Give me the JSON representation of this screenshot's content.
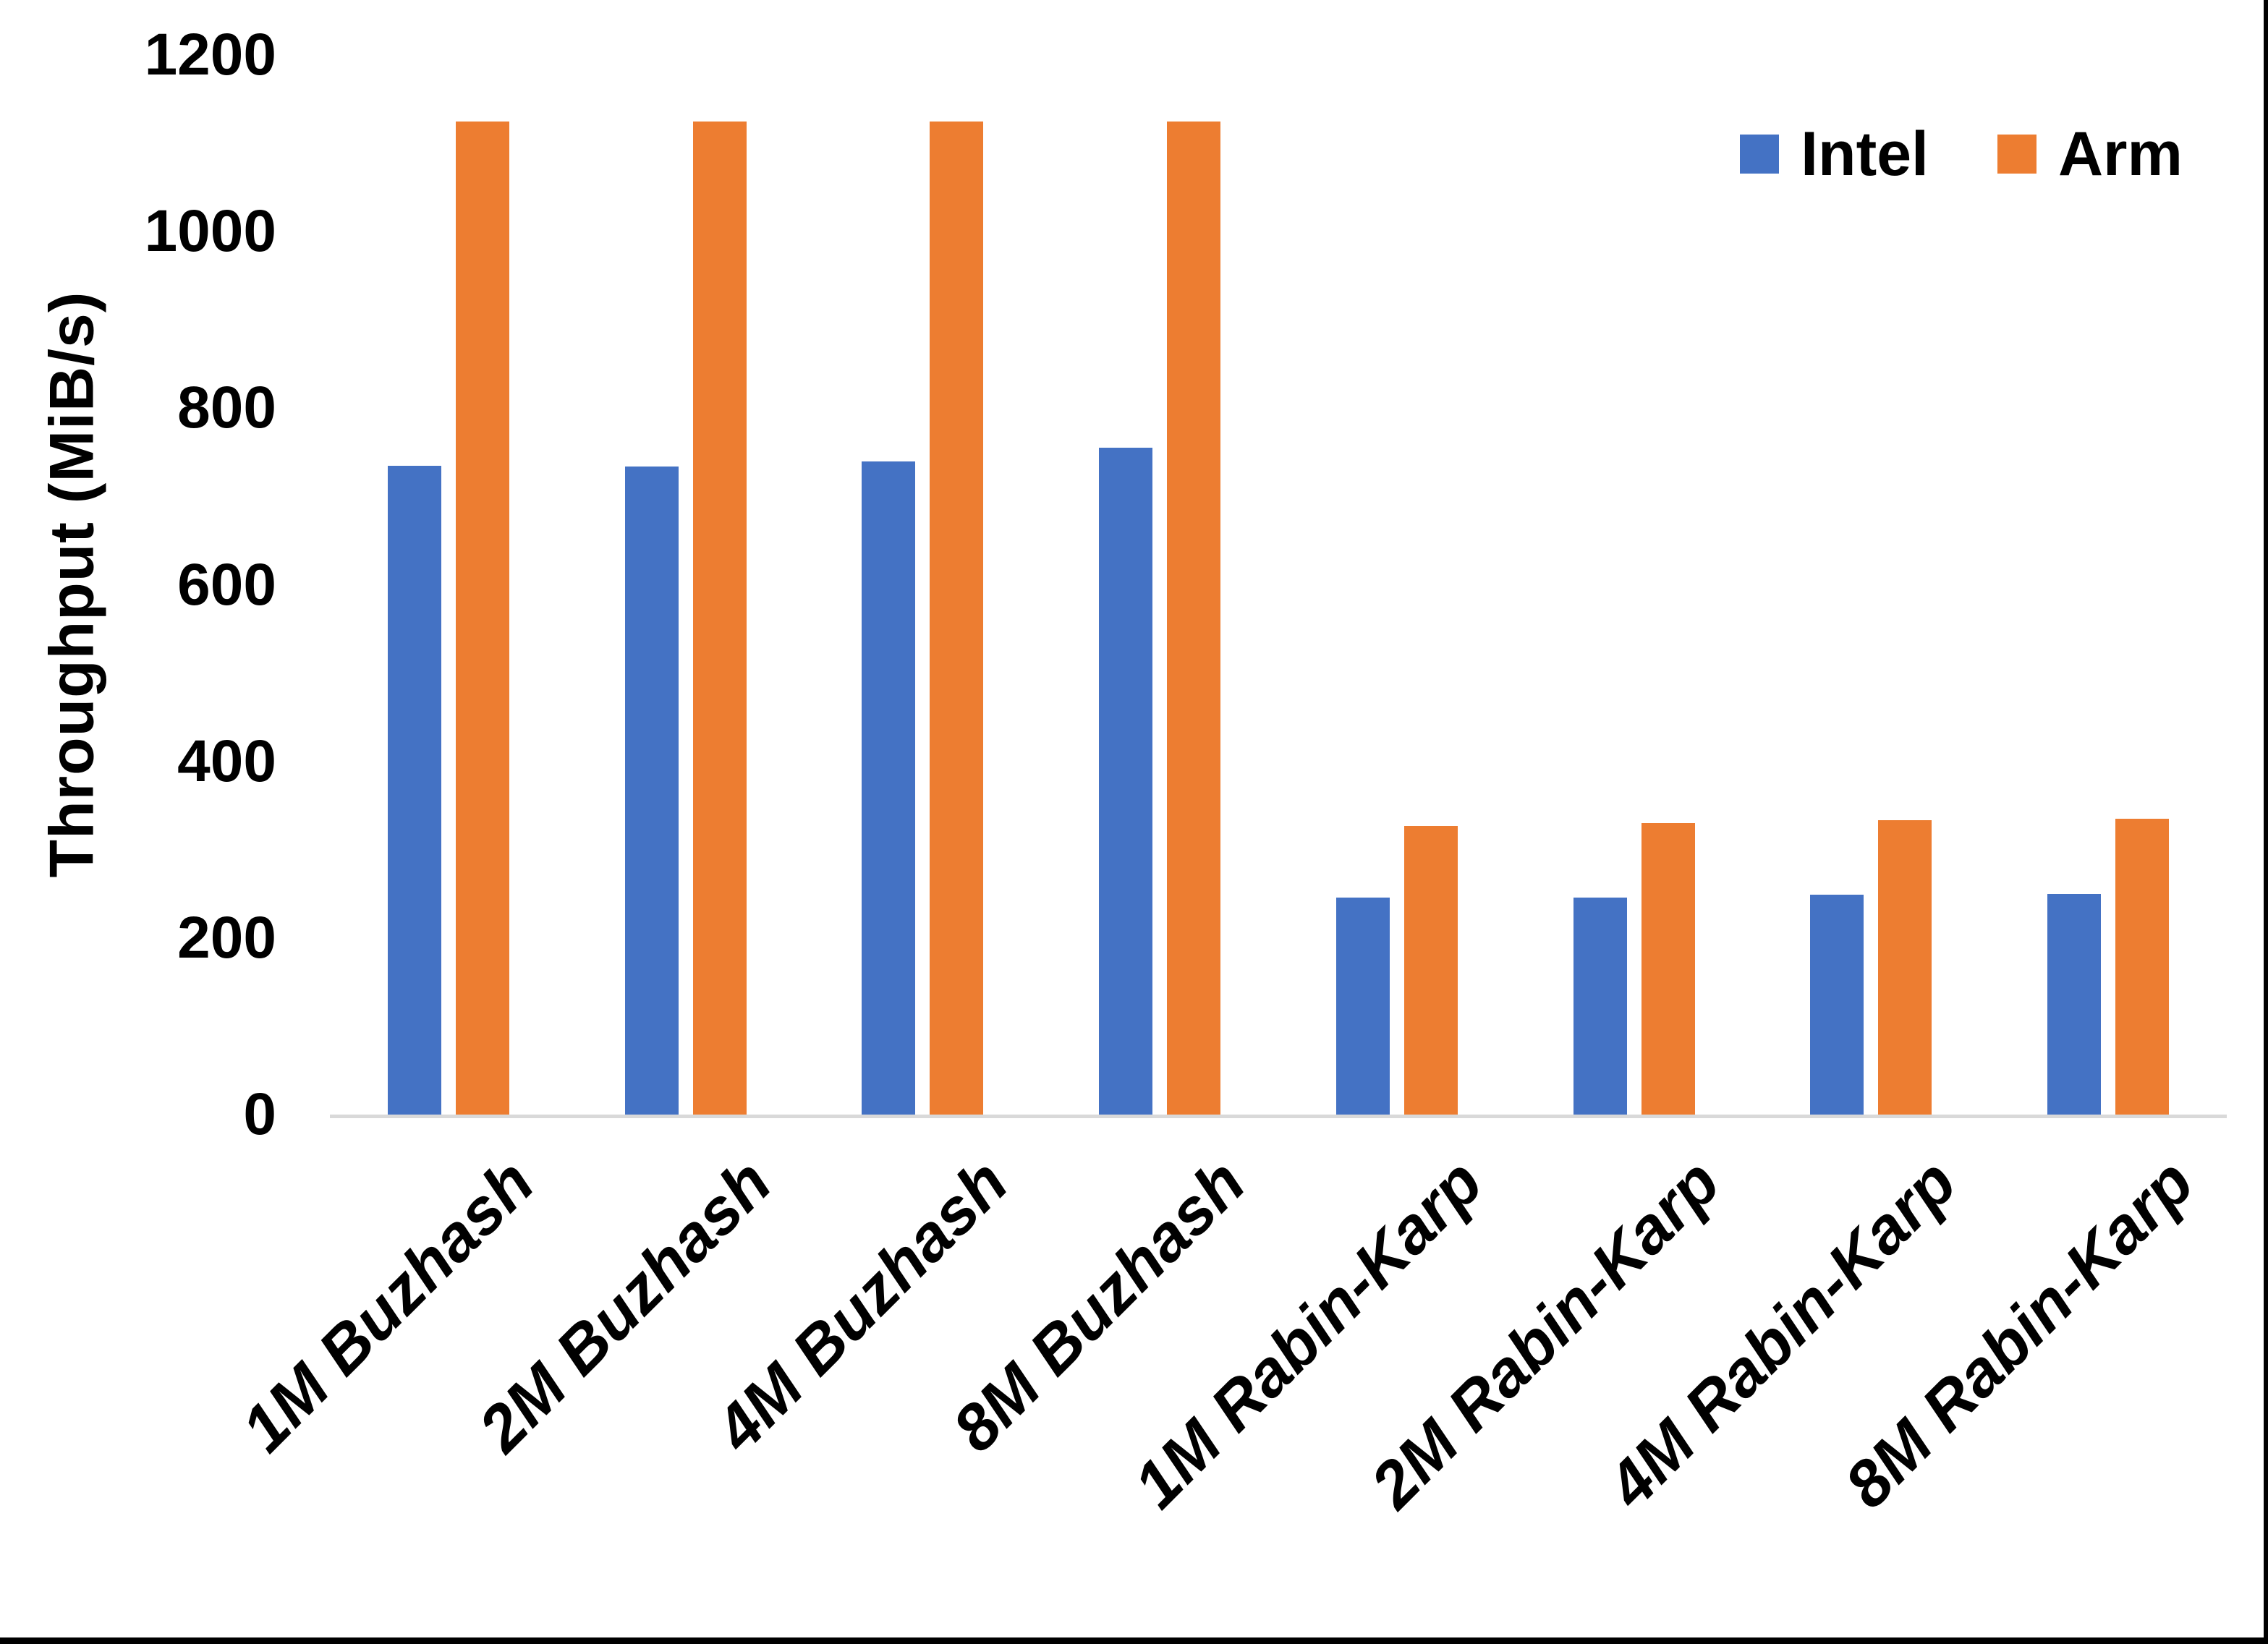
{
  "chart_data": {
    "type": "bar",
    "categories": [
      "1M Buzhash",
      "2M Buzhash",
      "4M Buzhash",
      "8M Buzhash",
      "1M Rabin-Karp",
      "2M Rabin-Karp",
      "4M Rabin-Karp",
      "8M Rabin-Karp"
    ],
    "series": [
      {
        "name": "Intel",
        "color": "#4472C4",
        "values": [
          735,
          734,
          740,
          755,
          246,
          246,
          249,
          250
        ]
      },
      {
        "name": "Arm",
        "color": "#ED7D31",
        "values": [
          1125,
          1125,
          1125,
          1125,
          327,
          330,
          333,
          335
        ]
      }
    ],
    "title": "",
    "xlabel": "",
    "ylabel": "Throughput (MiB/s)",
    "ylim": [
      0,
      1200
    ],
    "yticks": [
      0,
      200,
      400,
      600,
      800,
      1000,
      1200
    ],
    "grid": false,
    "legend_position": "top-right",
    "axis_line_color": "#D9D9D9",
    "text_color": "#000000",
    "background_color": "#FFFFFF",
    "page_edge_color": "#000000"
  }
}
